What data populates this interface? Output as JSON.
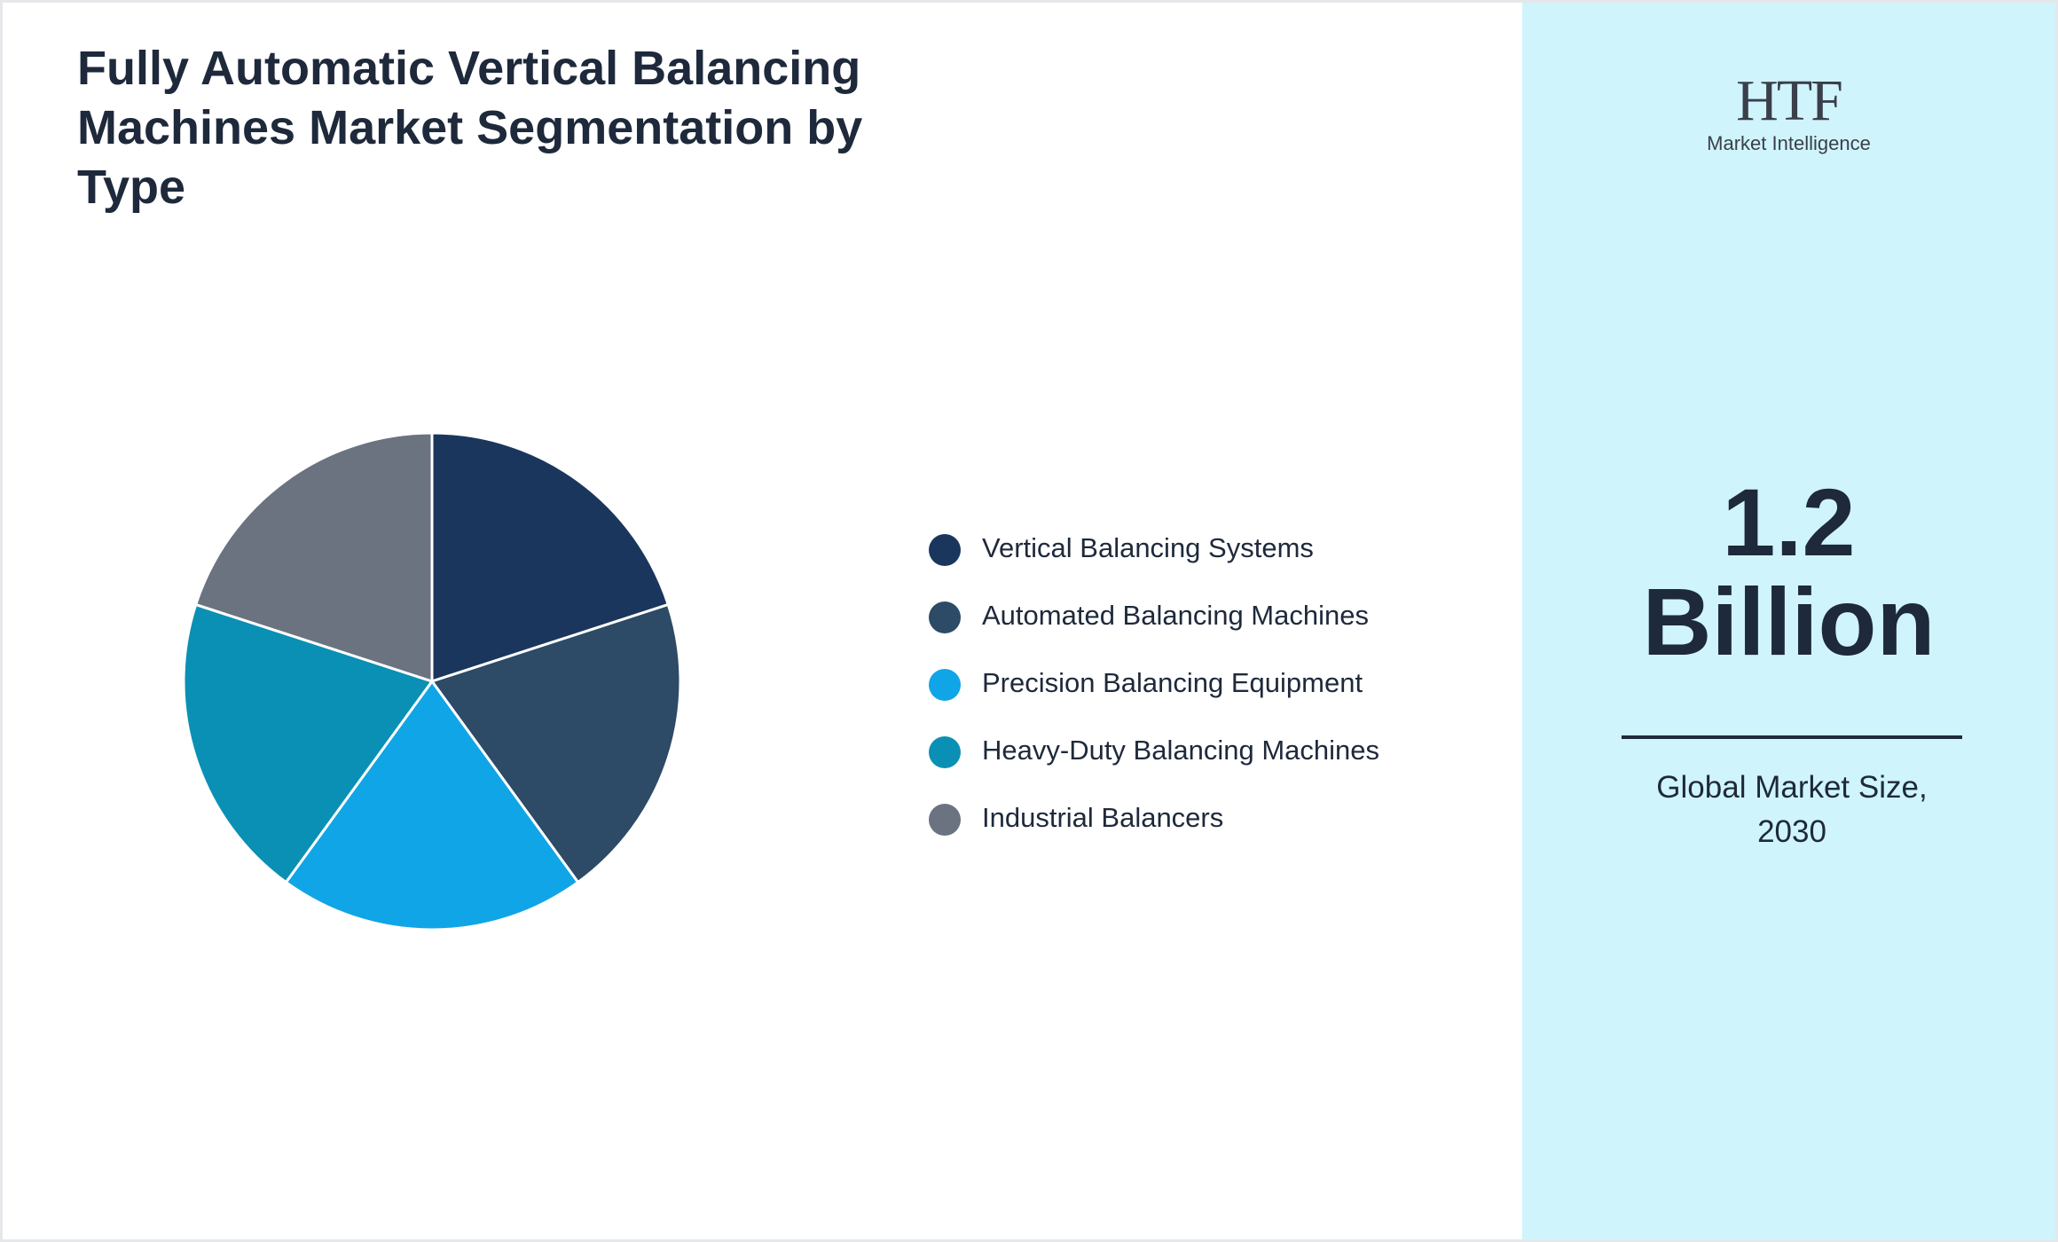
{
  "chart_data": {
    "type": "pie",
    "title": "Fully Automatic Vertical Balancing Machines Market Segmentation by Type",
    "categories": [
      "Vertical Balancing Systems",
      "Automated Balancing Machines",
      "Precision Balancing Equipment",
      "Heavy-Duty Balancing Machines",
      "Industrial Balancers"
    ],
    "values": [
      20,
      20,
      20,
      20,
      20
    ],
    "colors": [
      "#1b365d",
      "#2d4a66",
      "#10a5e6",
      "#0a90b4",
      "#6b7280"
    ]
  },
  "logo": {
    "text": "HTF",
    "subtitle": "Market Intelligence"
  },
  "market_size": {
    "value": "1.2",
    "unit": "Billion",
    "label": "Global Market Size, 2030"
  }
}
